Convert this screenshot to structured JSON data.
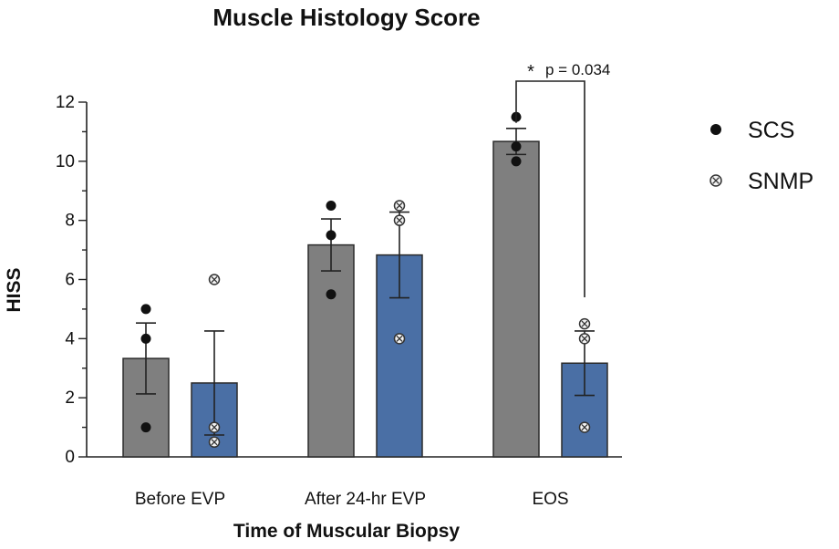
{
  "chart_data": {
    "type": "bar",
    "title": "Muscle Histology Score",
    "xlabel": "Time of Muscular Biopsy",
    "ylabel": "HISS",
    "ylim": [
      0,
      12
    ],
    "yticks": [
      "0",
      "2",
      "4",
      "6",
      "8",
      "10",
      "12"
    ],
    "categories": [
      "Before EVP",
      "After 24-hr EVP",
      "EOS"
    ],
    "legend_position": "right",
    "series": [
      {
        "name": "SCS",
        "color": "#7f7f7f",
        "marker": "filled-circle",
        "values": [
          3.33,
          7.17,
          10.67
        ],
        "error": [
          1.2,
          0.88,
          0.44
        ],
        "points": [
          [
            5,
            4,
            1
          ],
          [
            8.5,
            7.5,
            5.5
          ],
          [
            11.5,
            10.5,
            10
          ]
        ]
      },
      {
        "name": "SNMP",
        "color": "#4a6fa5",
        "marker": "circled-x",
        "values": [
          2.5,
          6.83,
          3.17
        ],
        "error": [
          1.76,
          1.45,
          1.09
        ],
        "points": [
          [
            6,
            1,
            0.5
          ],
          [
            8.5,
            8,
            4
          ],
          [
            4.5,
            4,
            1
          ]
        ]
      }
    ],
    "annotations": [
      {
        "star": "*",
        "text": "p = 0.034",
        "category": "EOS"
      }
    ]
  }
}
